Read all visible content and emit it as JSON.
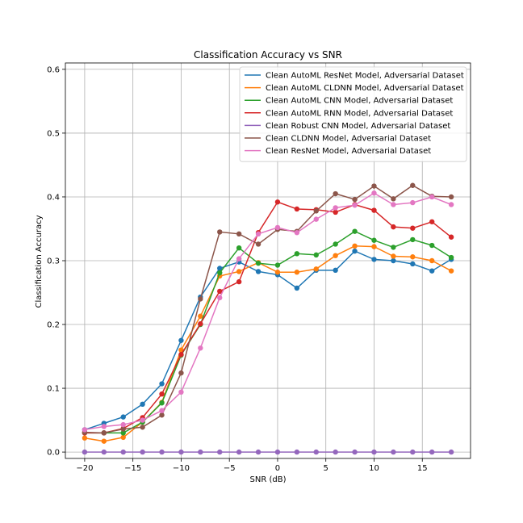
{
  "chart_data": {
    "type": "line",
    "title": "Classification Accuracy vs SNR",
    "xlabel": "SNR (dB)",
    "ylabel": "Classification Accuracy",
    "xlim": [
      -22,
      20
    ],
    "ylim": [
      -0.01,
      0.61
    ],
    "xticks": [
      -20,
      -15,
      -10,
      -5,
      0,
      5,
      10,
      15
    ],
    "yticks": [
      0.0,
      0.1,
      0.2,
      0.3,
      0.4,
      0.5,
      0.6
    ],
    "grid": true,
    "legend_position": "top-right",
    "x": [
      -20,
      -18,
      -16,
      -14,
      -12,
      -10,
      -8,
      -6,
      -4,
      -2,
      0,
      2,
      4,
      6,
      8,
      10,
      12,
      14,
      16,
      18
    ],
    "series": [
      {
        "name": "Clean AutoML ResNet Model, Adversarial Dataset",
        "color": "#1f77b4",
        "values": [
          0.035,
          0.045,
          0.055,
          0.075,
          0.107,
          0.175,
          0.243,
          0.288,
          0.298,
          0.283,
          0.278,
          0.257,
          0.285,
          0.285,
          0.315,
          0.302,
          0.3,
          0.295,
          0.284,
          0.302
        ]
      },
      {
        "name": "Clean AutoML CLDNN Model, Adversarial Dataset",
        "color": "#ff7f0e",
        "values": [
          0.022,
          0.017,
          0.023,
          0.047,
          0.078,
          0.16,
          0.213,
          0.276,
          0.283,
          0.297,
          0.282,
          0.282,
          0.287,
          0.308,
          0.323,
          0.322,
          0.307,
          0.306,
          0.3,
          0.284
        ]
      },
      {
        "name": "Clean AutoML CNN Model, Adversarial Dataset",
        "color": "#2ca02c",
        "values": [
          0.03,
          0.03,
          0.03,
          0.047,
          0.077,
          0.152,
          0.2,
          0.281,
          0.32,
          0.296,
          0.293,
          0.311,
          0.309,
          0.326,
          0.346,
          0.332,
          0.321,
          0.333,
          0.324,
          0.305
        ]
      },
      {
        "name": "Clean AutoML RNN Model, Adversarial Dataset",
        "color": "#d62728",
        "values": [
          0.03,
          0.03,
          0.037,
          0.054,
          0.091,
          0.153,
          0.201,
          0.252,
          0.267,
          0.344,
          0.392,
          0.381,
          0.38,
          0.376,
          0.388,
          0.379,
          0.353,
          0.351,
          0.361,
          0.337
        ]
      },
      {
        "name": "Clean Robust CNN Model, Adversarial Dataset",
        "color": "#9467bd",
        "values": [
          0.0,
          0.0,
          0.0,
          0.0,
          0.0,
          0.0,
          0.0,
          0.0,
          0.0,
          0.0,
          0.0,
          0.0,
          0.0,
          0.0,
          0.0,
          0.0,
          0.0,
          0.0,
          0.0,
          0.0
        ]
      },
      {
        "name": "Clean CLDNN Model, Adversarial Dataset",
        "color": "#8c564b",
        "values": [
          0.031,
          0.03,
          0.036,
          0.039,
          0.058,
          0.124,
          0.24,
          0.345,
          0.342,
          0.326,
          0.349,
          0.346,
          0.378,
          0.405,
          0.396,
          0.417,
          0.397,
          0.418,
          0.401,
          0.4
        ]
      },
      {
        "name": "Clean ResNet Model, Adversarial Dataset",
        "color": "#e377c2",
        "values": [
          0.035,
          0.04,
          0.043,
          0.05,
          0.065,
          0.094,
          0.163,
          0.242,
          0.303,
          0.342,
          0.352,
          0.344,
          0.365,
          0.383,
          0.387,
          0.406,
          0.388,
          0.391,
          0.4,
          0.388
        ]
      }
    ]
  }
}
